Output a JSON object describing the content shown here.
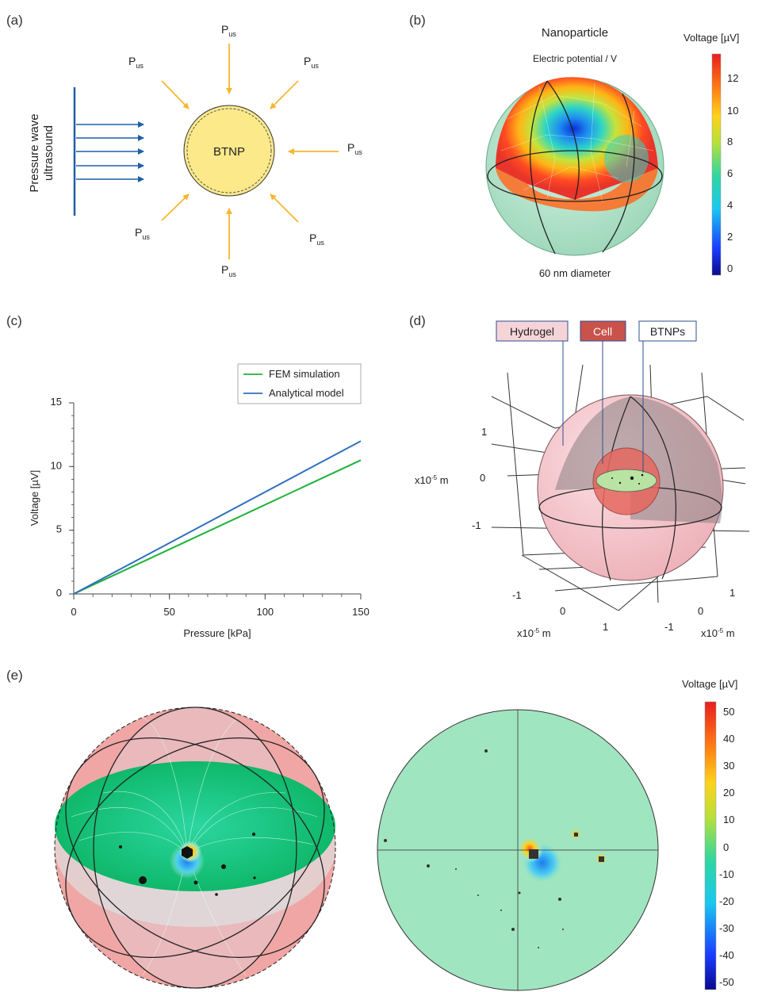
{
  "panels": {
    "a": {
      "label": "(a)",
      "wave_label_line1": "Pressure wave",
      "wave_label_line2": "ultrasound",
      "particle_label": "BTNP",
      "pressure_main": "P",
      "pressure_sub": "us"
    },
    "b": {
      "label": "(b)",
      "title": "Nanoparticle",
      "subtitle": "Electric potential / V",
      "caption": "60 nm diameter",
      "colorbar_title": "Voltage [µV]",
      "colorbar_ticks": [
        "12",
        "10",
        "8",
        "6",
        "4",
        "2",
        "0"
      ]
    },
    "c": {
      "label": "(c)"
    },
    "d": {
      "label": "(d)",
      "tag_hydrogel": "Hydrogel",
      "tag_cell": "Cell",
      "tag_btnps": "BTNPs",
      "axis_unit_main": "x10",
      "axis_unit_exp": "-5",
      "axis_unit_suffix": " m",
      "z_ticks": [
        "1",
        "0",
        "-1"
      ],
      "x_ticks": [
        "-1",
        "0",
        "1"
      ],
      "y_ticks": [
        "1",
        "0",
        "-1"
      ]
    },
    "e": {
      "label": "(e)",
      "colorbar_title": "Voltage [µV]",
      "colorbar_ticks": [
        "50",
        "40",
        "30",
        "20",
        "10",
        "0",
        "-10",
        "-20",
        "-30",
        "-40",
        "-50"
      ]
    }
  },
  "chart_data": {
    "type": "line",
    "title": "",
    "xlabel": "Pressure [kPa]",
    "ylabel": "Voltage [µV]",
    "xlim": [
      0,
      150
    ],
    "ylim": [
      0,
      15
    ],
    "xticks": [
      "0",
      "50",
      "100",
      "150"
    ],
    "yticks": [
      "0",
      "5",
      "10",
      "15"
    ],
    "legend_position": "top-right",
    "series": [
      {
        "name": "FEM simulation",
        "color": "#1db33a",
        "x": [
          0,
          150
        ],
        "y": [
          0,
          10.5
        ]
      },
      {
        "name": "Analytical model",
        "color": "#2f6fbe",
        "x": [
          0,
          150
        ],
        "y": [
          0,
          12.0
        ]
      }
    ]
  },
  "colors": {
    "ultrasound": "#1f5fa8",
    "pressure_arrow": "#f5b731",
    "particle_fill": "#fbe98a",
    "hydrogel": "#f2c1c7",
    "cell": "#e5685f",
    "field_green": "#8fe0b5"
  }
}
